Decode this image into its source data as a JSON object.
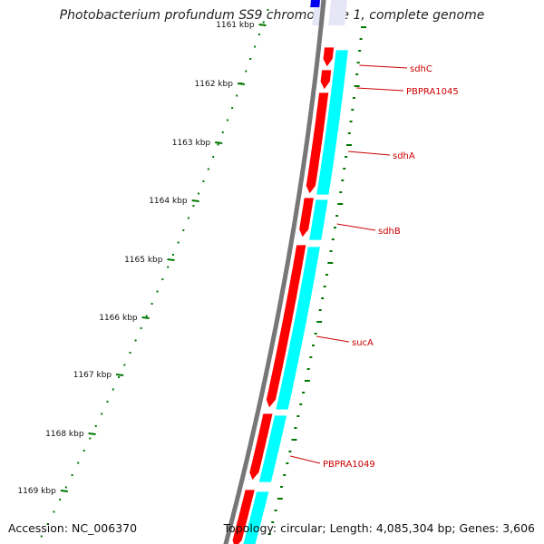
{
  "title": "Photobacterium profundum SS9 chromosome 1, complete genome",
  "footer": {
    "accession": "Accession: NC_006370",
    "topology": "Topology: circular; Length: 4,085,304 bp; Genes: 3,606"
  },
  "colors": {
    "backbone": "#777777",
    "forward_genes": "#ff0000",
    "reverse_track": "#00ffff",
    "top_gene": "#0000ee",
    "ticks": "#007700",
    "labels": "#cc0000"
  },
  "ticks": [
    "1161 kbp",
    "1162 kbp",
    "1163 kbp",
    "1164 kbp",
    "1165 kbp",
    "1166 kbp",
    "1167 kbp",
    "1168 kbp",
    "1169 kbp"
  ],
  "genes": [
    {
      "name": "sdhC"
    },
    {
      "name": "PBPRA1045"
    },
    {
      "name": "sdhA"
    },
    {
      "name": "sdhB"
    },
    {
      "name": "sucA"
    },
    {
      "name": "PBPRA1049"
    }
  ]
}
